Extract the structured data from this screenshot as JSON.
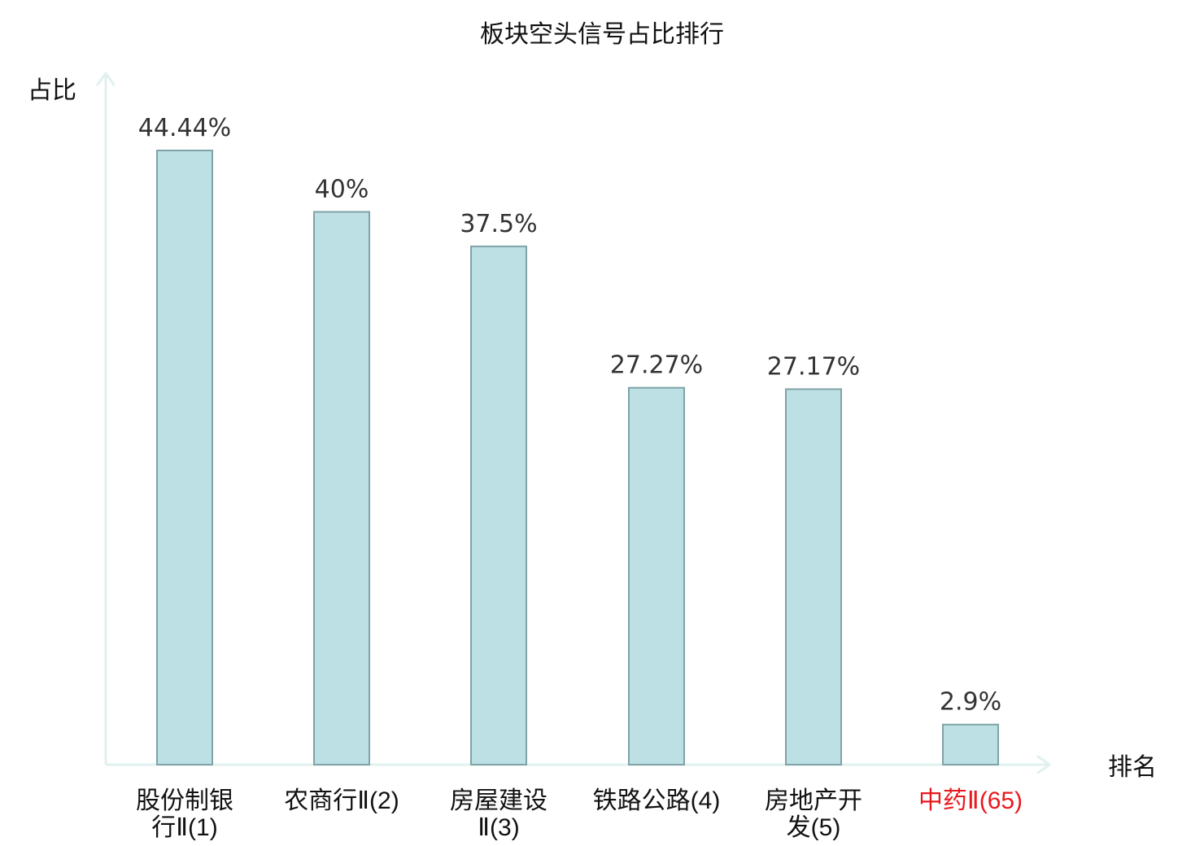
{
  "chart_data": {
    "type": "bar",
    "title": "板块空头信号占比排行",
    "xlabel": "排名",
    "ylabel": "占比",
    "ylim": [
      0,
      50
    ],
    "grid": false,
    "categories": [
      {
        "name": "股份制银行Ⅱ",
        "rank": "(1)",
        "lines": [
          "股份制银",
          "行Ⅱ(1)"
        ],
        "highlight": false
      },
      {
        "name": "农商行Ⅱ",
        "rank": "(2)",
        "lines": [
          "农商行Ⅱ(2)"
        ],
        "highlight": false
      },
      {
        "name": "房屋建设Ⅱ",
        "rank": "(3)",
        "lines": [
          "房屋建设",
          "Ⅱ(3)"
        ],
        "highlight": false
      },
      {
        "name": "铁路公路",
        "rank": "(4)",
        "lines": [
          "铁路公路(4)"
        ],
        "highlight": false
      },
      {
        "name": "房地产开发",
        "rank": "(5)",
        "lines": [
          "房地产开",
          "发(5)"
        ],
        "highlight": false
      },
      {
        "name": "中药Ⅱ",
        "rank": "(65)",
        "lines": [
          "中药Ⅱ(65)"
        ],
        "highlight": true
      }
    ],
    "values": [
      44.44,
      40,
      37.5,
      27.27,
      27.17,
      2.9
    ],
    "value_labels": [
      "44.44%",
      "40%",
      "37.5%",
      "27.27%",
      "27.17%",
      "2.9%"
    ],
    "colors": {
      "bar_fill": "#bce0e3",
      "bar_stroke": "#7fa3a6",
      "axis": "#e0f1ef",
      "label": "#111111",
      "value_label": "#333333",
      "highlight": "#e8191d"
    }
  }
}
